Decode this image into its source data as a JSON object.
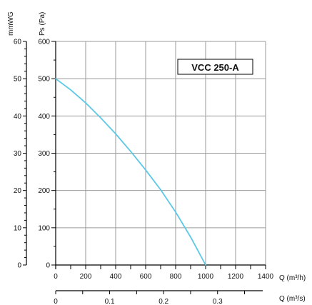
{
  "chart_data": {
    "type": "line",
    "model_label": "VCC 250-A",
    "x_label": "Q (m³/h)",
    "x2_label": "Q (m³/s)",
    "y_label": "Ps (Pa)",
    "y2_label": "mmWG",
    "xlim": [
      0,
      1400
    ],
    "ylim": [
      0,
      600
    ],
    "x2lim": [
      0,
      0.389
    ],
    "y2lim": [
      0,
      60
    ],
    "x_ticks": [
      0,
      200,
      400,
      600,
      800,
      1000,
      1200,
      1400
    ],
    "y_ticks": [
      0,
      100,
      200,
      300,
      400,
      500,
      600
    ],
    "y2_ticks": [
      0,
      10,
      20,
      30,
      40,
      50,
      60
    ],
    "x2_ticks": [
      0,
      0.1,
      0.2,
      0.3
    ],
    "x2_tick_labels": [
      "0",
      "0.1",
      "0.2",
      "0.3"
    ],
    "grid": true,
    "colors": {
      "curve": "#5bc8e6",
      "grid": "#9a9a9a",
      "axis": "#000000"
    },
    "series": [
      {
        "x": [
          0,
          100,
          200,
          300,
          400,
          500,
          600,
          700,
          800,
          900,
          1000
        ],
        "y": [
          500,
          470,
          435,
          395,
          352,
          305,
          255,
          202,
          142,
          75,
          0
        ]
      }
    ]
  }
}
